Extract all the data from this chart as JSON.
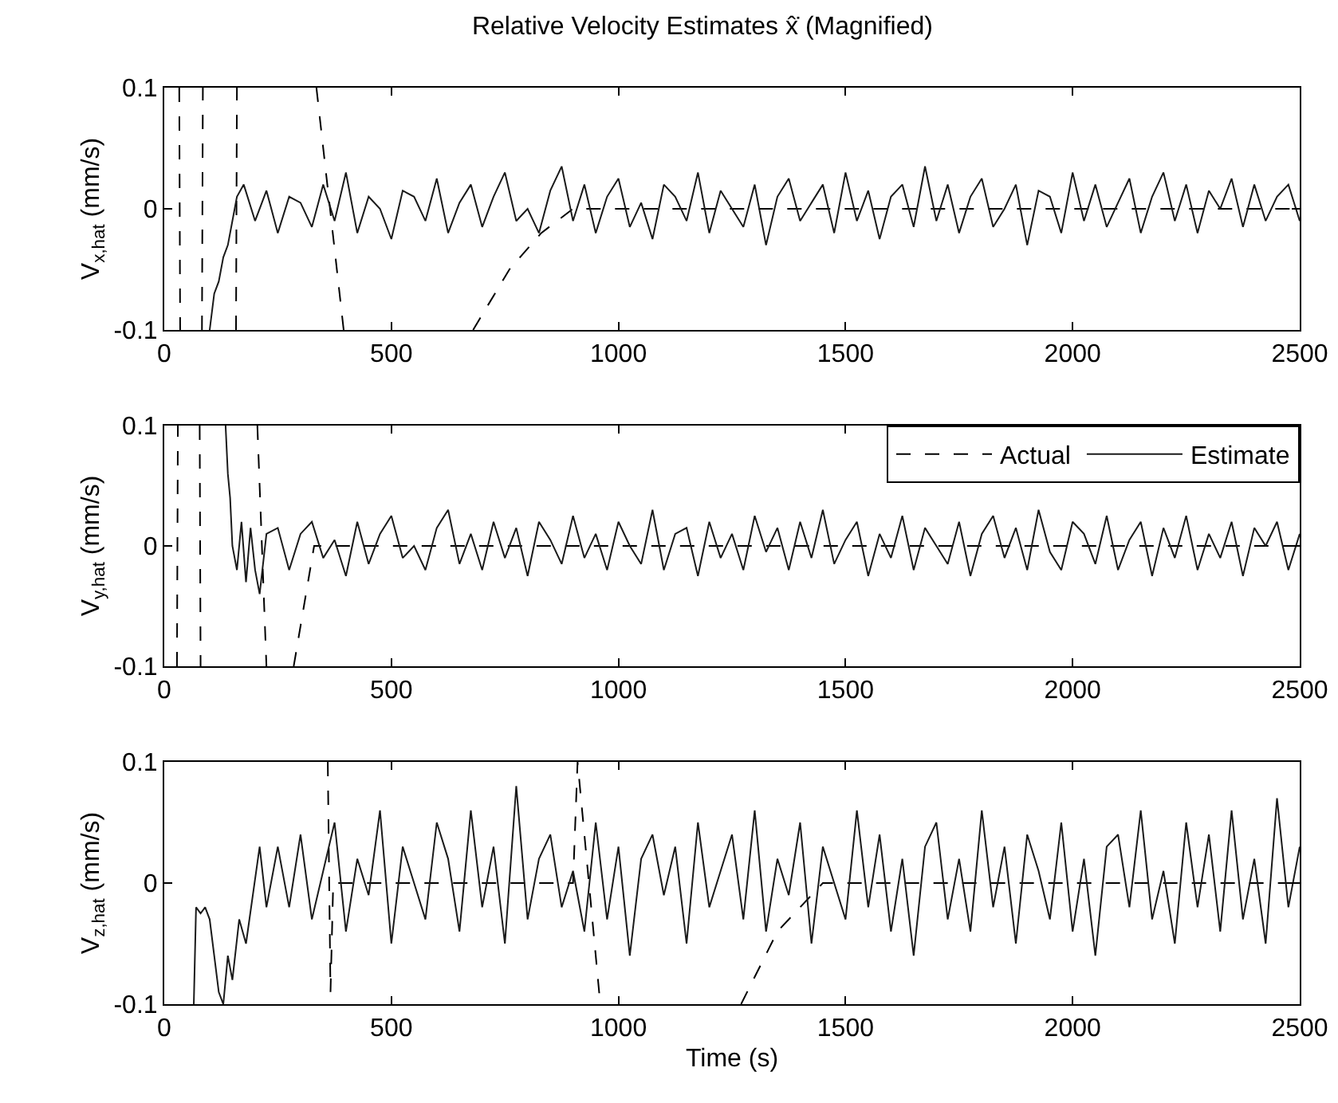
{
  "chart_data": [
    {
      "type": "line",
      "title": "Relative Velocity Estimates x̂̇ (Magnified)",
      "ylabel": "V$_{x,hat}$ (mm/s)",
      "xlim": [
        0,
        2500
      ],
      "xticks": [
        0,
        500,
        1000,
        1500,
        2000,
        2500
      ],
      "ylim": [
        -0.1,
        0.1
      ],
      "yticks": [
        -0.1,
        0,
        0.1
      ],
      "series": [
        {
          "color": "#000000",
          "line_style": "dashed",
          "x": [
            33,
            35,
            36,
            83,
            85,
            86,
            158,
            160,
            161,
            335,
            395,
            396,
            680,
            760,
            830,
            900,
            2500
          ],
          "values": [
            0.1,
            -0.1,
            null,
            -0.1,
            0.1,
            null,
            -0.1,
            0.1,
            null,
            0.1,
            -0.1,
            null,
            -0.1,
            -0.05,
            -0.02,
            0,
            0
          ]
        },
        {
          "color": "#1a1a1a",
          "line_style": "solid",
          "x": [
            100,
            110,
            120,
            130,
            140,
            150,
            160,
            175,
            200,
            225,
            250,
            275,
            300,
            325,
            350,
            375,
            400,
            425,
            450,
            475,
            500,
            525,
            550,
            575,
            600,
            625,
            650,
            675,
            700,
            725,
            750,
            775,
            800,
            825,
            850,
            875,
            900,
            925,
            950,
            975,
            1000,
            1025,
            1050,
            1075,
            1100,
            1125,
            1150,
            1175,
            1200,
            1225,
            1250,
            1275,
            1300,
            1325,
            1350,
            1375,
            1400,
            1425,
            1450,
            1475,
            1500,
            1525,
            1550,
            1575,
            1600,
            1625,
            1650,
            1675,
            1700,
            1725,
            1750,
            1775,
            1800,
            1825,
            1850,
            1875,
            1900,
            1925,
            1950,
            1975,
            2000,
            2025,
            2050,
            2075,
            2100,
            2125,
            2150,
            2175,
            2200,
            2225,
            2250,
            2275,
            2300,
            2325,
            2350,
            2375,
            2400,
            2425,
            2450,
            2475,
            2500
          ],
          "values": [
            -0.1,
            -0.07,
            -0.06,
            -0.04,
            -0.03,
            -0.01,
            0.01,
            0.02,
            -0.01,
            0.015,
            -0.02,
            0.01,
            0.005,
            -0.015,
            0.02,
            -0.01,
            0.03,
            -0.02,
            0.01,
            0,
            -0.025,
            0.015,
            0.01,
            -0.01,
            0.025,
            -0.02,
            0.005,
            0.02,
            -0.015,
            0.01,
            0.03,
            -0.01,
            0,
            -0.02,
            0.015,
            0.035,
            -0.01,
            0.02,
            -0.02,
            0.01,
            0.025,
            -0.015,
            0.005,
            -0.025,
            0.02,
            0.01,
            -0.01,
            0.03,
            -0.02,
            0.015,
            0,
            -0.015,
            0.02,
            -0.03,
            0.01,
            0.025,
            -0.01,
            0.005,
            0.02,
            -0.02,
            0.03,
            -0.01,
            0.015,
            -0.025,
            0.01,
            0.02,
            -0.015,
            0.035,
            -0.01,
            0.02,
            -0.02,
            0.01,
            0.025,
            -0.015,
            0,
            0.02,
            -0.03,
            0.015,
            0.01,
            -0.02,
            0.03,
            -0.01,
            0.02,
            -0.015,
            0.005,
            0.025,
            -0.02,
            0.01,
            0.03,
            -0.01,
            0.02,
            -0.02,
            0.015,
            0,
            0.025,
            -0.015,
            0.02,
            -0.01,
            0.01,
            0.02,
            -0.01
          ]
        }
      ]
    },
    {
      "type": "line",
      "ylabel": "V$_{y,hat}$ (mm/s)",
      "xlim": [
        0,
        2500
      ],
      "xticks": [
        0,
        500,
        1000,
        1500,
        2000,
        2500
      ],
      "ylim": [
        -0.1,
        0.1
      ],
      "yticks": [
        -0.1,
        0,
        0.1
      ],
      "legend": "top right",
      "series": [
        {
          "name": "Actual",
          "color": "#000000",
          "line_style": "dashed",
          "x": [
            28,
            30,
            31,
            78,
            80,
            81,
            205,
            225,
            226,
            285,
            330,
            2500
          ],
          "values": [
            -0.1,
            0.1,
            null,
            0.1,
            -0.1,
            null,
            0.1,
            -0.1,
            null,
            -0.1,
            0,
            0
          ]
        },
        {
          "name": "Estimate",
          "color": "#1a1a1a",
          "line_style": "solid",
          "x": [
            135,
            140,
            145,
            150,
            160,
            170,
            180,
            190,
            200,
            210,
            225,
            250,
            275,
            300,
            325,
            350,
            375,
            400,
            425,
            450,
            475,
            500,
            525,
            550,
            575,
            600,
            625,
            650,
            675,
            700,
            725,
            750,
            775,
            800,
            825,
            850,
            875,
            900,
            925,
            950,
            975,
            1000,
            1025,
            1050,
            1075,
            1100,
            1125,
            1150,
            1175,
            1200,
            1225,
            1250,
            1275,
            1300,
            1325,
            1350,
            1375,
            1400,
            1425,
            1450,
            1475,
            1500,
            1525,
            1550,
            1575,
            1600,
            1625,
            1650,
            1675,
            1700,
            1725,
            1750,
            1775,
            1800,
            1825,
            1850,
            1875,
            1900,
            1925,
            1950,
            1975,
            2000,
            2025,
            2050,
            2075,
            2100,
            2125,
            2150,
            2175,
            2200,
            2225,
            2250,
            2275,
            2300,
            2325,
            2350,
            2375,
            2400,
            2425,
            2450,
            2475,
            2500
          ],
          "values": [
            0.1,
            0.06,
            0.04,
            0,
            -0.02,
            0.02,
            -0.03,
            0.015,
            -0.02,
            -0.04,
            0.01,
            0.015,
            -0.02,
            0.01,
            0.02,
            -0.01,
            0.005,
            -0.025,
            0.02,
            -0.015,
            0.01,
            0.025,
            -0.01,
            0,
            -0.02,
            0.015,
            0.03,
            -0.015,
            0.01,
            -0.02,
            0.02,
            -0.01,
            0.015,
            -0.025,
            0.02,
            0.005,
            -0.015,
            0.025,
            -0.01,
            0.01,
            -0.02,
            0.02,
            0,
            -0.015,
            0.03,
            -0.02,
            0.01,
            0.015,
            -0.025,
            0.02,
            -0.01,
            0.01,
            -0.02,
            0.025,
            -0.005,
            0.015,
            -0.02,
            0.02,
            -0.01,
            0.03,
            -0.015,
            0.005,
            0.02,
            -0.025,
            0.01,
            -0.01,
            0.025,
            -0.02,
            0.015,
            0,
            -0.015,
            0.02,
            -0.025,
            0.01,
            0.025,
            -0.01,
            0.015,
            -0.02,
            0.03,
            -0.005,
            -0.02,
            0.02,
            0.01,
            -0.015,
            0.025,
            -0.02,
            0.005,
            0.02,
            -0.025,
            0.015,
            -0.01,
            0.025,
            -0.02,
            0.01,
            -0.01,
            0.02,
            -0.025,
            0.015,
            0,
            0.02,
            -0.02,
            0.01
          ]
        }
      ]
    },
    {
      "type": "line",
      "ylabel": "V$_{z,hat}$ (mm/s)",
      "xlabel": "Time (s)",
      "xlim": [
        0,
        2500
      ],
      "xticks": [
        0,
        500,
        1000,
        1500,
        2000,
        2500
      ],
      "ylim": [
        -0.1,
        0.1
      ],
      "yticks": [
        -0.1,
        0,
        0.1
      ],
      "series": [
        {
          "color": "#000000",
          "line_style": "dashed",
          "x": [
            360,
            366,
            372,
            900,
            910,
            960,
            961,
            1270,
            1350,
            1450,
            2500
          ],
          "values": [
            0.1,
            -0.09,
            0,
            0,
            0.1,
            -0.1,
            null,
            -0.1,
            -0.04,
            0,
            0
          ]
        },
        {
          "color": "#1a1a1a",
          "line_style": "solid",
          "x": [
            65,
            70,
            80,
            90,
            100,
            110,
            120,
            130,
            140,
            150,
            165,
            180,
            195,
            210,
            225,
            250,
            275,
            300,
            325,
            350,
            375,
            400,
            425,
            450,
            475,
            500,
            525,
            550,
            575,
            600,
            625,
            650,
            675,
            700,
            725,
            750,
            775,
            800,
            825,
            850,
            875,
            900,
            925,
            950,
            975,
            1000,
            1025,
            1050,
            1075,
            1100,
            1125,
            1150,
            1175,
            1200,
            1225,
            1250,
            1275,
            1300,
            1325,
            1350,
            1375,
            1400,
            1425,
            1450,
            1475,
            1500,
            1525,
            1550,
            1575,
            1600,
            1625,
            1650,
            1675,
            1700,
            1725,
            1750,
            1775,
            1800,
            1825,
            1850,
            1875,
            1900,
            1925,
            1950,
            1975,
            2000,
            2025,
            2050,
            2075,
            2100,
            2125,
            2150,
            2175,
            2200,
            2225,
            2250,
            2275,
            2300,
            2325,
            2350,
            2375,
            2400,
            2425,
            2450,
            2475,
            2500
          ],
          "values": [
            -0.1,
            -0.02,
            -0.025,
            -0.02,
            -0.03,
            -0.06,
            -0.09,
            -0.1,
            -0.06,
            -0.08,
            -0.03,
            -0.05,
            -0.01,
            0.03,
            -0.02,
            0.03,
            -0.02,
            0.04,
            -0.03,
            0.01,
            0.05,
            -0.04,
            0.02,
            -0.01,
            0.06,
            -0.05,
            0.03,
            0,
            -0.03,
            0.05,
            0.02,
            -0.04,
            0.06,
            -0.02,
            0.03,
            -0.05,
            0.08,
            -0.03,
            0.02,
            0.04,
            -0.02,
            0.01,
            -0.04,
            0.05,
            -0.03,
            0.03,
            -0.06,
            0.02,
            0.04,
            -0.01,
            0.03,
            -0.05,
            0.05,
            -0.02,
            0.01,
            0.04,
            -0.03,
            0.06,
            -0.04,
            0.02,
            -0.01,
            0.05,
            -0.05,
            0.03,
            0,
            -0.03,
            0.06,
            -0.02,
            0.04,
            -0.04,
            0.02,
            -0.06,
            0.03,
            0.05,
            -0.03,
            0.02,
            -0.04,
            0.06,
            -0.02,
            0.03,
            -0.05,
            0.04,
            0.01,
            -0.03,
            0.05,
            -0.04,
            0.02,
            -0.06,
            0.03,
            0.04,
            -0.02,
            0.06,
            -0.03,
            0.01,
            -0.05,
            0.05,
            -0.02,
            0.04,
            -0.04,
            0.06,
            -0.03,
            0.02,
            -0.05,
            0.07,
            -0.02,
            0.03
          ]
        }
      ]
    }
  ]
}
